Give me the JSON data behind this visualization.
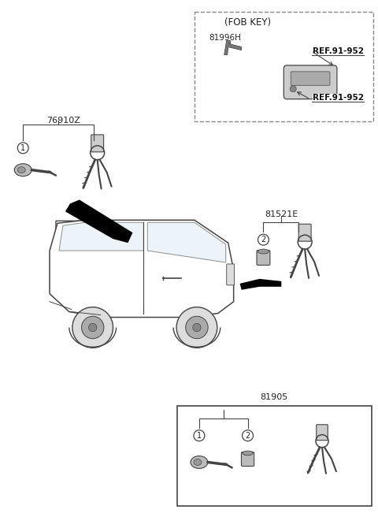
{
  "bg_color": "#ffffff",
  "line_color": "#444444",
  "text_color": "#222222",
  "fob_key_label": "(FOB KEY)",
  "part_76910Z": "76910Z",
  "part_81521E": "81521E",
  "part_81996H": "81996H",
  "part_81905": "81905",
  "ref_952a": "REF.91-952",
  "ref_952b": "REF.91-952",
  "c1": "1",
  "c2": "2"
}
